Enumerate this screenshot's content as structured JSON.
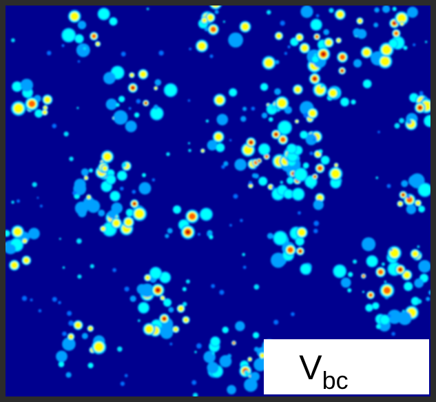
{
  "label": {
    "main": "V",
    "subscript": "bc"
  }
}
